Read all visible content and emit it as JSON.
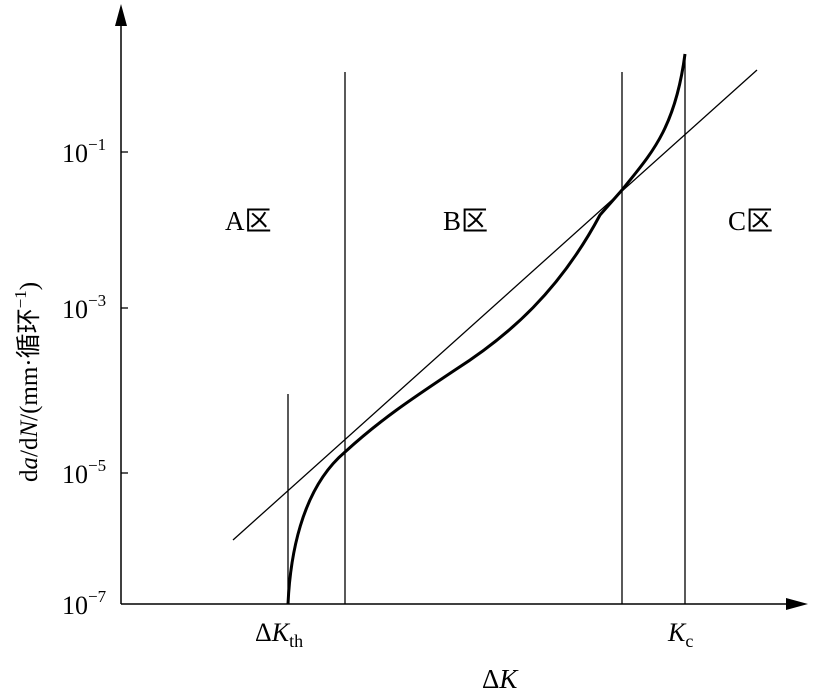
{
  "axes": {
    "y_title": "da/dN/(mm·循环⁻¹)",
    "y_title_parts": {
      "d1": "d",
      "a": "a",
      "slash1": "/d",
      "N": "N",
      "rest": "/(mm·循环",
      "sup": "−1",
      "close": ")"
    },
    "x_title": {
      "delta": "Δ",
      "K": "K"
    },
    "y_ticks": [
      {
        "base": "10",
        "exp": "−1"
      },
      {
        "base": "10",
        "exp": "−3"
      },
      {
        "base": "10",
        "exp": "−5"
      },
      {
        "base": "10",
        "exp": "−7"
      }
    ],
    "x_marks": {
      "threshold": {
        "delta": "Δ",
        "K": "K",
        "sub": "th"
      },
      "critical": {
        "K": "K",
        "sub": "c"
      }
    }
  },
  "regions": [
    {
      "letter": "A",
      "char": "区"
    },
    {
      "letter": "B",
      "char": "区"
    },
    {
      "letter": "C",
      "char": "区"
    }
  ],
  "colors": {
    "ink": "#000000",
    "background": "#ffffff"
  }
}
